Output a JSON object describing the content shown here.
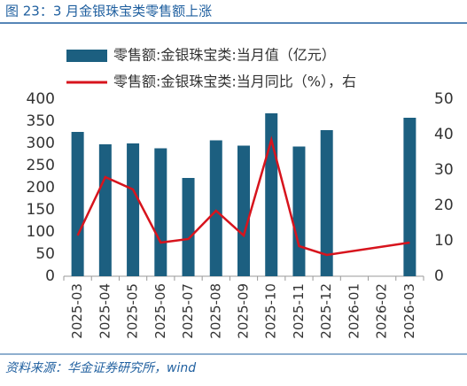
{
  "chart_data": {
    "type": "bar_line",
    "title": "图 23：3 月金银珠宝类零售额上涨",
    "source": "资料来源：华金证券研究所，wind",
    "categories": [
      "2025-03",
      "2025-04",
      "2025-05",
      "2025-06",
      "2025-07",
      "2025-08",
      "2025-09",
      "2025-10",
      "2025-11",
      "2025-12",
      "2026-01",
      "2026-02",
      "2026-03"
    ],
    "series": [
      {
        "name": "零售额:金银珠宝类:当月值（亿元）",
        "type": "bar",
        "color": "#1c5f80",
        "values": [
          326,
          298,
          300,
          289,
          222,
          307,
          295,
          368,
          293,
          330,
          null,
          null,
          358
        ]
      },
      {
        "name": "零售额:金银珠宝类:当月同比（%），右",
        "type": "line",
        "axis": "y2",
        "color": "#d7141d",
        "values": [
          11.5,
          28,
          24.5,
          9.5,
          10.5,
          18.5,
          11.5,
          38.5,
          8.5,
          6,
          null,
          null,
          9.5
        ]
      }
    ],
    "span_gaps": true,
    "ylim": [
      0,
      400
    ],
    "yticks": [
      0,
      50,
      100,
      150,
      200,
      250,
      300,
      350,
      400
    ],
    "y2lim": [
      0,
      50
    ],
    "y2ticks": [
      0,
      10,
      20,
      30,
      40,
      50
    ]
  }
}
